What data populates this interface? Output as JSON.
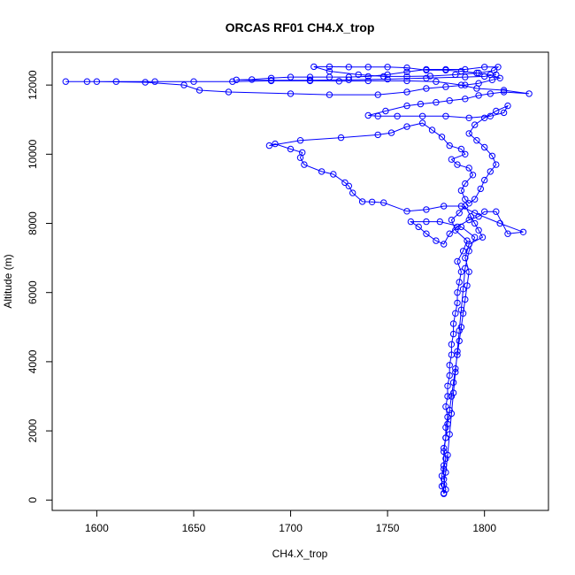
{
  "chart_data": {
    "type": "scatter",
    "title": "ORCAS RF01 CH4.X_trop",
    "xlabel": "CH4.X_trop",
    "ylabel": "Altitude (m)",
    "xlim": [
      1577,
      1833
    ],
    "ylim": [
      -300,
      12950
    ],
    "xticks": [
      1600,
      1650,
      1700,
      1750,
      1800
    ],
    "yticks": [
      0,
      2000,
      4000,
      6000,
      8000,
      10000,
      12000
    ],
    "grid": false,
    "legend": "none",
    "marker": "open-circle",
    "connected": true,
    "series_color": "#0000ff",
    "series": [
      {
        "points": [
          [
            1779,
            180
          ],
          [
            1780,
            300
          ],
          [
            1779,
            600
          ],
          [
            1779,
            900
          ],
          [
            1780,
            1200
          ],
          [
            1779,
            1500
          ],
          [
            1780,
            1800
          ],
          [
            1780,
            2100
          ],
          [
            1781,
            2400
          ],
          [
            1780,
            2700
          ],
          [
            1781,
            3000
          ],
          [
            1781,
            3300
          ],
          [
            1782,
            3600
          ],
          [
            1782,
            3900
          ],
          [
            1783,
            4200
          ],
          [
            1783,
            4500
          ],
          [
            1784,
            4800
          ],
          [
            1784,
            5100
          ],
          [
            1785,
            5400
          ],
          [
            1786,
            5700
          ],
          [
            1786,
            6000
          ],
          [
            1787,
            6300
          ],
          [
            1788,
            6600
          ],
          [
            1786,
            6900
          ],
          [
            1789,
            7200
          ],
          [
            1791,
            7500
          ],
          [
            1785,
            7800
          ],
          [
            1783,
            8100
          ],
          [
            1787,
            8300
          ],
          [
            1790,
            8500
          ],
          [
            1793,
            8200
          ],
          [
            1795,
            8000
          ],
          [
            1797,
            7800
          ],
          [
            1799,
            7600
          ],
          [
            1792,
            7400
          ],
          [
            1790,
            7000
          ],
          [
            1792,
            6600
          ],
          [
            1791,
            6200
          ],
          [
            1790,
            5800
          ],
          [
            1789,
            5400
          ],
          [
            1788,
            5000
          ],
          [
            1787,
            4600
          ],
          [
            1786,
            4200
          ],
          [
            1785,
            3800
          ],
          [
            1784,
            3400
          ],
          [
            1783,
            3000
          ],
          [
            1782,
            2600
          ],
          [
            1781,
            2200
          ],
          [
            1780,
            1800
          ],
          [
            1779,
            1400
          ],
          [
            1779,
            1000
          ],
          [
            1778,
            700
          ],
          [
            1778,
            400
          ],
          [
            1779,
            200
          ],
          [
            1779,
            450
          ],
          [
            1780,
            800
          ],
          [
            1781,
            1300
          ],
          [
            1782,
            1900
          ],
          [
            1783,
            2500
          ],
          [
            1784,
            3100
          ],
          [
            1785,
            3700
          ],
          [
            1786,
            4300
          ],
          [
            1787,
            4900
          ],
          [
            1788,
            5500
          ],
          [
            1789,
            6100
          ],
          [
            1790,
            6700
          ],
          [
            1792,
            7200
          ],
          [
            1795,
            7600
          ],
          [
            1788,
            7900
          ],
          [
            1777,
            8050
          ],
          [
            1770,
            8050
          ],
          [
            1762,
            8050
          ],
          [
            1766,
            7900
          ],
          [
            1770,
            7700
          ],
          [
            1775,
            7500
          ],
          [
            1779,
            7400
          ],
          [
            1782,
            7700
          ],
          [
            1786,
            7900
          ],
          [
            1792,
            8100
          ],
          [
            1797,
            8200
          ],
          [
            1800,
            8340
          ],
          [
            1806,
            8340
          ],
          [
            1812,
            7700
          ],
          [
            1820,
            7750
          ],
          [
            1808,
            8000
          ],
          [
            1795,
            8300
          ],
          [
            1788,
            8500
          ],
          [
            1779,
            8500
          ],
          [
            1770,
            8400
          ],
          [
            1760,
            8350
          ],
          [
            1748,
            8600
          ],
          [
            1742,
            8620
          ],
          [
            1737,
            8630
          ],
          [
            1732,
            8880
          ],
          [
            1730,
            9080
          ],
          [
            1728,
            9180
          ],
          [
            1722,
            9420
          ],
          [
            1716,
            9500
          ],
          [
            1707,
            9700
          ],
          [
            1705,
            9900
          ],
          [
            1706,
            10050
          ],
          [
            1700,
            10150
          ],
          [
            1692,
            10300
          ],
          [
            1689,
            10250
          ],
          [
            1705,
            10400
          ],
          [
            1726,
            10480
          ],
          [
            1745,
            10560
          ],
          [
            1752,
            10620
          ],
          [
            1760,
            10800
          ],
          [
            1768,
            10900
          ],
          [
            1773,
            10700
          ],
          [
            1778,
            10500
          ],
          [
            1782,
            10250
          ],
          [
            1788,
            10150
          ],
          [
            1790,
            10000
          ],
          [
            1783,
            9850
          ],
          [
            1786,
            9700
          ],
          [
            1792,
            9600
          ],
          [
            1794,
            9400
          ],
          [
            1790,
            9150
          ],
          [
            1788,
            8950
          ],
          [
            1790,
            8700
          ],
          [
            1792,
            8580
          ],
          [
            1795,
            8700
          ],
          [
            1798,
            9000
          ],
          [
            1800,
            9250
          ],
          [
            1803,
            9500
          ],
          [
            1806,
            9700
          ],
          [
            1804,
            9950
          ],
          [
            1800,
            10200
          ],
          [
            1796,
            10400
          ],
          [
            1792,
            10600
          ],
          [
            1795,
            10850
          ],
          [
            1800,
            11050
          ],
          [
            1806,
            11250
          ],
          [
            1812,
            11400
          ],
          [
            1810,
            11200
          ],
          [
            1803,
            11100
          ],
          [
            1792,
            11050
          ],
          [
            1780,
            11100
          ],
          [
            1768,
            11100
          ],
          [
            1755,
            11100
          ],
          [
            1745,
            11100
          ],
          [
            1740,
            11120
          ],
          [
            1749,
            11250
          ],
          [
            1760,
            11400
          ],
          [
            1767,
            11450
          ],
          [
            1775,
            11500
          ],
          [
            1782,
            11550
          ],
          [
            1790,
            11600
          ],
          [
            1797,
            11700
          ],
          [
            1803,
            11750
          ],
          [
            1810,
            11800
          ],
          [
            1823,
            11750
          ],
          [
            1810,
            11850
          ],
          [
            1796,
            11900
          ],
          [
            1788,
            12000
          ],
          [
            1775,
            12100
          ],
          [
            1760,
            12120
          ],
          [
            1740,
            12120
          ],
          [
            1725,
            12110
          ],
          [
            1710,
            12120
          ],
          [
            1690,
            12120
          ],
          [
            1670,
            12100
          ],
          [
            1650,
            12100
          ],
          [
            1630,
            12100
          ],
          [
            1610,
            12100
          ],
          [
            1595,
            12100
          ],
          [
            1584,
            12100
          ],
          [
            1600,
            12100
          ],
          [
            1625,
            12080
          ],
          [
            1645,
            12000
          ],
          [
            1653,
            11850
          ],
          [
            1668,
            11800
          ],
          [
            1700,
            11750
          ],
          [
            1720,
            11720
          ],
          [
            1745,
            11720
          ],
          [
            1760,
            11800
          ],
          [
            1770,
            11900
          ],
          [
            1780,
            11950
          ],
          [
            1790,
            12000
          ],
          [
            1797,
            12050
          ],
          [
            1804,
            12150
          ],
          [
            1808,
            12200
          ],
          [
            1803,
            12300
          ],
          [
            1796,
            12350
          ],
          [
            1788,
            12400
          ],
          [
            1780,
            12430
          ],
          [
            1770,
            12430
          ],
          [
            1760,
            12500
          ],
          [
            1750,
            12520
          ],
          [
            1740,
            12520
          ],
          [
            1730,
            12520
          ],
          [
            1720,
            12530
          ],
          [
            1712,
            12530
          ],
          [
            1720,
            12400
          ],
          [
            1735,
            12300
          ],
          [
            1748,
            12250
          ],
          [
            1760,
            12250
          ],
          [
            1772,
            12260
          ],
          [
            1785,
            12300
          ],
          [
            1797,
            12350
          ],
          [
            1805,
            12420
          ],
          [
            1807,
            12520
          ],
          [
            1800,
            12520
          ],
          [
            1790,
            12450
          ],
          [
            1780,
            12450
          ],
          [
            1770,
            12450
          ],
          [
            1760,
            12380
          ],
          [
            1750,
            12300
          ],
          [
            1740,
            12250
          ],
          [
            1730,
            12230
          ],
          [
            1720,
            12230
          ],
          [
            1710,
            12230
          ],
          [
            1700,
            12230
          ],
          [
            1690,
            12200
          ],
          [
            1680,
            12160
          ],
          [
            1672,
            12150
          ],
          [
            1690,
            12140
          ],
          [
            1710,
            12140
          ],
          [
            1730,
            12150
          ],
          [
            1750,
            12170
          ],
          [
            1770,
            12200
          ],
          [
            1790,
            12230
          ],
          [
            1800,
            12250
          ],
          [
            1806,
            12300
          ]
        ]
      }
    ]
  }
}
